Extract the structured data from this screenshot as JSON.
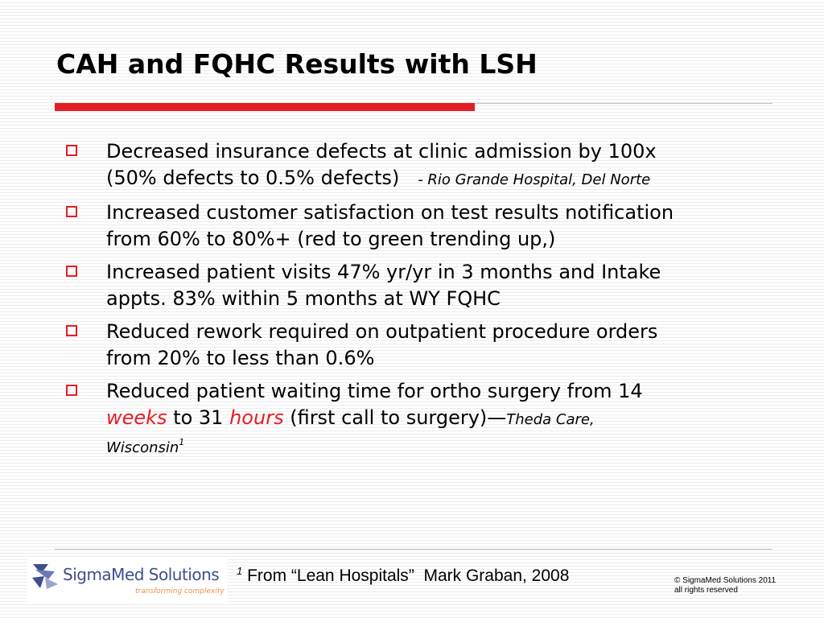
{
  "slide": {
    "title": "CAH and FQHC Results with LSH"
  },
  "bullets": {
    "b1_line1": "Decreased insurance defects at clinic admission by 100x",
    "b1_line2": "(50% defects to 0.5% defects)",
    "b1_source": "- Rio Grande Hospital, Del Norte",
    "b2_line1": "Increased customer satisfaction on test results notification",
    "b2_line2": "from 60% to 80%+ (red to green trending up,)",
    "b3_line1": "Increased patient visits 47% yr/yr in 3 months and Intake",
    "b3_line2": "appts. 83% within 5 months at WY FQHC",
    "b4_line1": "Reduced rework required on outpatient procedure orders",
    "b4_line2": "from 20% to less than 0.6%",
    "b5_line1": "Reduced patient waiting time for ortho surgery from 14",
    "b5_weeks": "weeks",
    "b5_to": " to 31 ",
    "b5_hours": "hours",
    "b5_rest": " (first call to surgery)—",
    "b5_source1": "Theda Care,",
    "b5_source2": "Wisconsin",
    "b5_sup": "1"
  },
  "footer": {
    "logo_name": "SigmaMed Solutions",
    "logo_tagline": "transforming complexity",
    "footnote_num": "1",
    "footnote_text": " From “Lean Hospitals”  Mark Graban, 2008",
    "copyright_line1": "© SigmaMed Solutions 2011",
    "copyright_line2": "all rights reserved"
  },
  "colors": {
    "accent_red": "#e31e24",
    "logo_blue": "#3e4f8c",
    "logo_orange": "#e8904a"
  },
  "icons": {
    "bullet": "hollow-square-bullet-icon",
    "logo": "sigmamed-logo-mark-icon"
  }
}
